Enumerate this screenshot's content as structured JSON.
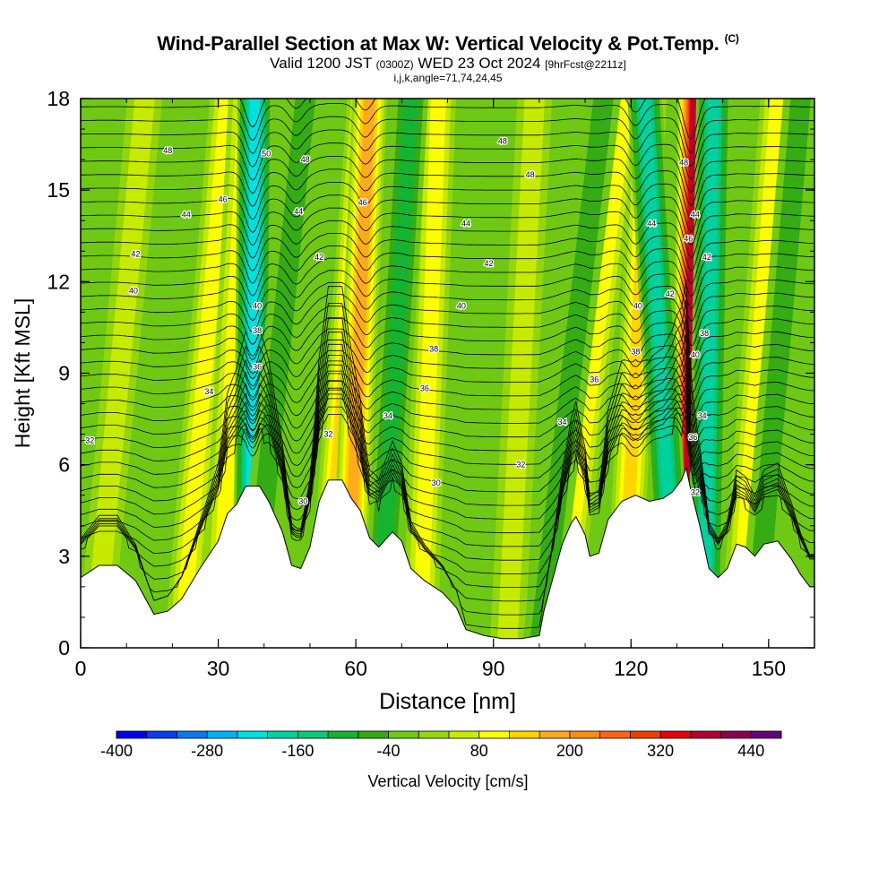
{
  "title": {
    "main": "Wind-Parallel Section at Max W: Vertical Velocity & Pot.Temp.",
    "corner": "(C)",
    "valid_prefix": "Valid 1200 JST",
    "valid_utc": "(0300Z)",
    "valid_date": "WED 23 Oct 2024",
    "forecast": "[9hrFcst@2211z]",
    "indices": "i,j,k,angle=71,74,24,45"
  },
  "chart_data": {
    "type": "heatmap",
    "xlabel": "Distance [nm]",
    "ylabel": "Height [Kft MSL]",
    "xlim": [
      0,
      160
    ],
    "ylim": [
      0,
      18
    ],
    "x_ticks": [
      0,
      30,
      60,
      90,
      120,
      150
    ],
    "y_ticks": [
      0,
      3,
      6,
      9,
      12,
      15,
      18
    ],
    "colorbar": {
      "label": "Vertical Velocity [cm/s]",
      "min": -400,
      "max": 480,
      "step": 40,
      "tick_labels": [
        "-400",
        "-280",
        "-160",
        "-40",
        "80",
        "200",
        "320",
        "440"
      ],
      "colors": [
        "#0000ee",
        "#0a3cf0",
        "#0a78f0",
        "#00b4f0",
        "#00e0e0",
        "#00d2a0",
        "#0ac878",
        "#14b432",
        "#32aa14",
        "#6ec814",
        "#96d70a",
        "#c8eb00",
        "#ffff00",
        "#ffd200",
        "#ffaa1e",
        "#ff8c14",
        "#ff6414",
        "#f03c0a",
        "#e6000a",
        "#b40032",
        "#8c0050",
        "#640078"
      ]
    },
    "terrain": [
      [
        0,
        2.3
      ],
      [
        4,
        2.7
      ],
      [
        8,
        2.7
      ],
      [
        12,
        2.2
      ],
      [
        16,
        1.1
      ],
      [
        19,
        1.2
      ],
      [
        22,
        1.6
      ],
      [
        26,
        2.6
      ],
      [
        30,
        3.5
      ],
      [
        32,
        4.4
      ],
      [
        34,
        4.7
      ],
      [
        36,
        5.3
      ],
      [
        39,
        5.3
      ],
      [
        41,
        4.8
      ],
      [
        44,
        3.8
      ],
      [
        46,
        2.7
      ],
      [
        48,
        2.6
      ],
      [
        50,
        3.3
      ],
      [
        52,
        4.8
      ],
      [
        54,
        5.5
      ],
      [
        57,
        5.5
      ],
      [
        59,
        4.9
      ],
      [
        61,
        4.5
      ],
      [
        63,
        3.6
      ],
      [
        65,
        3.3
      ],
      [
        68,
        3.8
      ],
      [
        70,
        3.5
      ],
      [
        72,
        2.6
      ],
      [
        75,
        2.2
      ],
      [
        79,
        1.8
      ],
      [
        82,
        1.3
      ],
      [
        84,
        0.6
      ],
      [
        88,
        0.4
      ],
      [
        92,
        0.3
      ],
      [
        96,
        0.3
      ],
      [
        100,
        0.4
      ],
      [
        101,
        1.2
      ],
      [
        103,
        2.3
      ],
      [
        105,
        3.4
      ],
      [
        107,
        4.1
      ],
      [
        108,
        4.3
      ],
      [
        110,
        3.7
      ],
      [
        111,
        3.0
      ],
      [
        113,
        3.1
      ],
      [
        115,
        4.2
      ],
      [
        118,
        4.8
      ],
      [
        121,
        5.0
      ],
      [
        124,
        4.8
      ],
      [
        127,
        4.9
      ],
      [
        129,
        5.1
      ],
      [
        131,
        5.5
      ],
      [
        132,
        5.9
      ],
      [
        133,
        5.2
      ],
      [
        135,
        4.0
      ],
      [
        137,
        2.6
      ],
      [
        139,
        2.3
      ],
      [
        141,
        2.6
      ],
      [
        143,
        3.4
      ],
      [
        145,
        3.3
      ],
      [
        147,
        3.0
      ],
      [
        149,
        3.4
      ],
      [
        152,
        3.5
      ],
      [
        155,
        2.9
      ],
      [
        157,
        2.4
      ],
      [
        159,
        2.0
      ],
      [
        160,
        2.0
      ]
    ],
    "updraft_bands": [
      {
        "x_base": 3,
        "x_top": 14,
        "w": 60
      },
      {
        "x_base": 22,
        "x_top": 32,
        "w": 90
      },
      {
        "x_base": 30,
        "x_top": 36,
        "w": 120
      },
      {
        "x_base": 53,
        "x_top": 62,
        "w": 130
      },
      {
        "x_base": 58,
        "x_top": 63,
        "w": 170
      },
      {
        "x_base": 74,
        "x_top": 78,
        "w": 90
      },
      {
        "x_base": 93,
        "x_top": 99,
        "w": 70
      },
      {
        "x_base": 104,
        "x_top": 119,
        "w": 110
      },
      {
        "x_base": 118,
        "x_top": 124,
        "w": 140
      },
      {
        "x_base": 132,
        "x_top": 134,
        "w": 380
      },
      {
        "x_base": 143,
        "x_top": 152,
        "w": 110
      }
    ],
    "downdraft_bands": [
      {
        "x_base": 37,
        "x_top": 38,
        "w": -210
      },
      {
        "x_base": 37,
        "x_top": 49,
        "w": -80
      },
      {
        "x_base": 65,
        "x_top": 72,
        "w": -90
      },
      {
        "x_base": 100,
        "x_top": 114,
        "w": -60
      },
      {
        "x_base": 130,
        "x_top": 123,
        "w": -180
      },
      {
        "x_base": 136,
        "x_top": 138,
        "w": -190
      },
      {
        "x_base": 147,
        "x_top": 157,
        "w": -60
      }
    ],
    "contour_labels": [
      {
        "x": 2,
        "y": 6.8,
        "text": "32"
      },
      {
        "x": 19,
        "y": 16.3,
        "text": "48"
      },
      {
        "x": 23,
        "y": 14.2,
        "text": "44"
      },
      {
        "x": 12,
        "y": 12.9,
        "text": "42"
      },
      {
        "x": 11.5,
        "y": 11.7,
        "text": "40"
      },
      {
        "x": 28,
        "y": 8.4,
        "text": "34"
      },
      {
        "x": 31,
        "y": 14.7,
        "text": "46"
      },
      {
        "x": 40.5,
        "y": 16.2,
        "text": "50"
      },
      {
        "x": 49,
        "y": 16.0,
        "text": "48"
      },
      {
        "x": 47.5,
        "y": 14.3,
        "text": "44"
      },
      {
        "x": 38.5,
        "y": 11.2,
        "text": "40"
      },
      {
        "x": 38.5,
        "y": 10.4,
        "text": "38"
      },
      {
        "x": 38.5,
        "y": 9.2,
        "text": "36"
      },
      {
        "x": 52,
        "y": 12.8,
        "text": "42"
      },
      {
        "x": 54,
        "y": 7.0,
        "text": "32"
      },
      {
        "x": 48.5,
        "y": 4.8,
        "text": "30"
      },
      {
        "x": 61.5,
        "y": 14.6,
        "text": "46"
      },
      {
        "x": 67,
        "y": 7.6,
        "text": "34"
      },
      {
        "x": 77.5,
        "y": 5.4,
        "text": "30"
      },
      {
        "x": 77,
        "y": 9.8,
        "text": "38"
      },
      {
        "x": 75,
        "y": 8.5,
        "text": "36"
      },
      {
        "x": 83,
        "y": 11.2,
        "text": "40"
      },
      {
        "x": 84,
        "y": 13.9,
        "text": "44"
      },
      {
        "x": 89,
        "y": 12.6,
        "text": "42"
      },
      {
        "x": 92,
        "y": 16.6,
        "text": "48"
      },
      {
        "x": 98,
        "y": 15.5,
        "text": "48"
      },
      {
        "x": 96,
        "y": 6.0,
        "text": "32"
      },
      {
        "x": 105,
        "y": 7.4,
        "text": "34"
      },
      {
        "x": 112,
        "y": 8.8,
        "text": "36"
      },
      {
        "x": 121,
        "y": 9.7,
        "text": "38"
      },
      {
        "x": 121.5,
        "y": 11.2,
        "text": "40"
      },
      {
        "x": 124.5,
        "y": 13.9,
        "text": "44"
      },
      {
        "x": 128.5,
        "y": 11.6,
        "text": "42"
      },
      {
        "x": 131.5,
        "y": 15.9,
        "text": "48"
      },
      {
        "x": 132.5,
        "y": 13.4,
        "text": "46"
      },
      {
        "x": 134,
        "y": 14.2,
        "text": "44"
      },
      {
        "x": 136.5,
        "y": 12.8,
        "text": "42"
      },
      {
        "x": 134,
        "y": 9.6,
        "text": "40"
      },
      {
        "x": 136,
        "y": 10.3,
        "text": "38"
      },
      {
        "x": 133.5,
        "y": 6.9,
        "text": "36"
      },
      {
        "x": 135.5,
        "y": 7.6,
        "text": "34"
      },
      {
        "x": 134,
        "y": 5.1,
        "text": "32"
      }
    ]
  }
}
